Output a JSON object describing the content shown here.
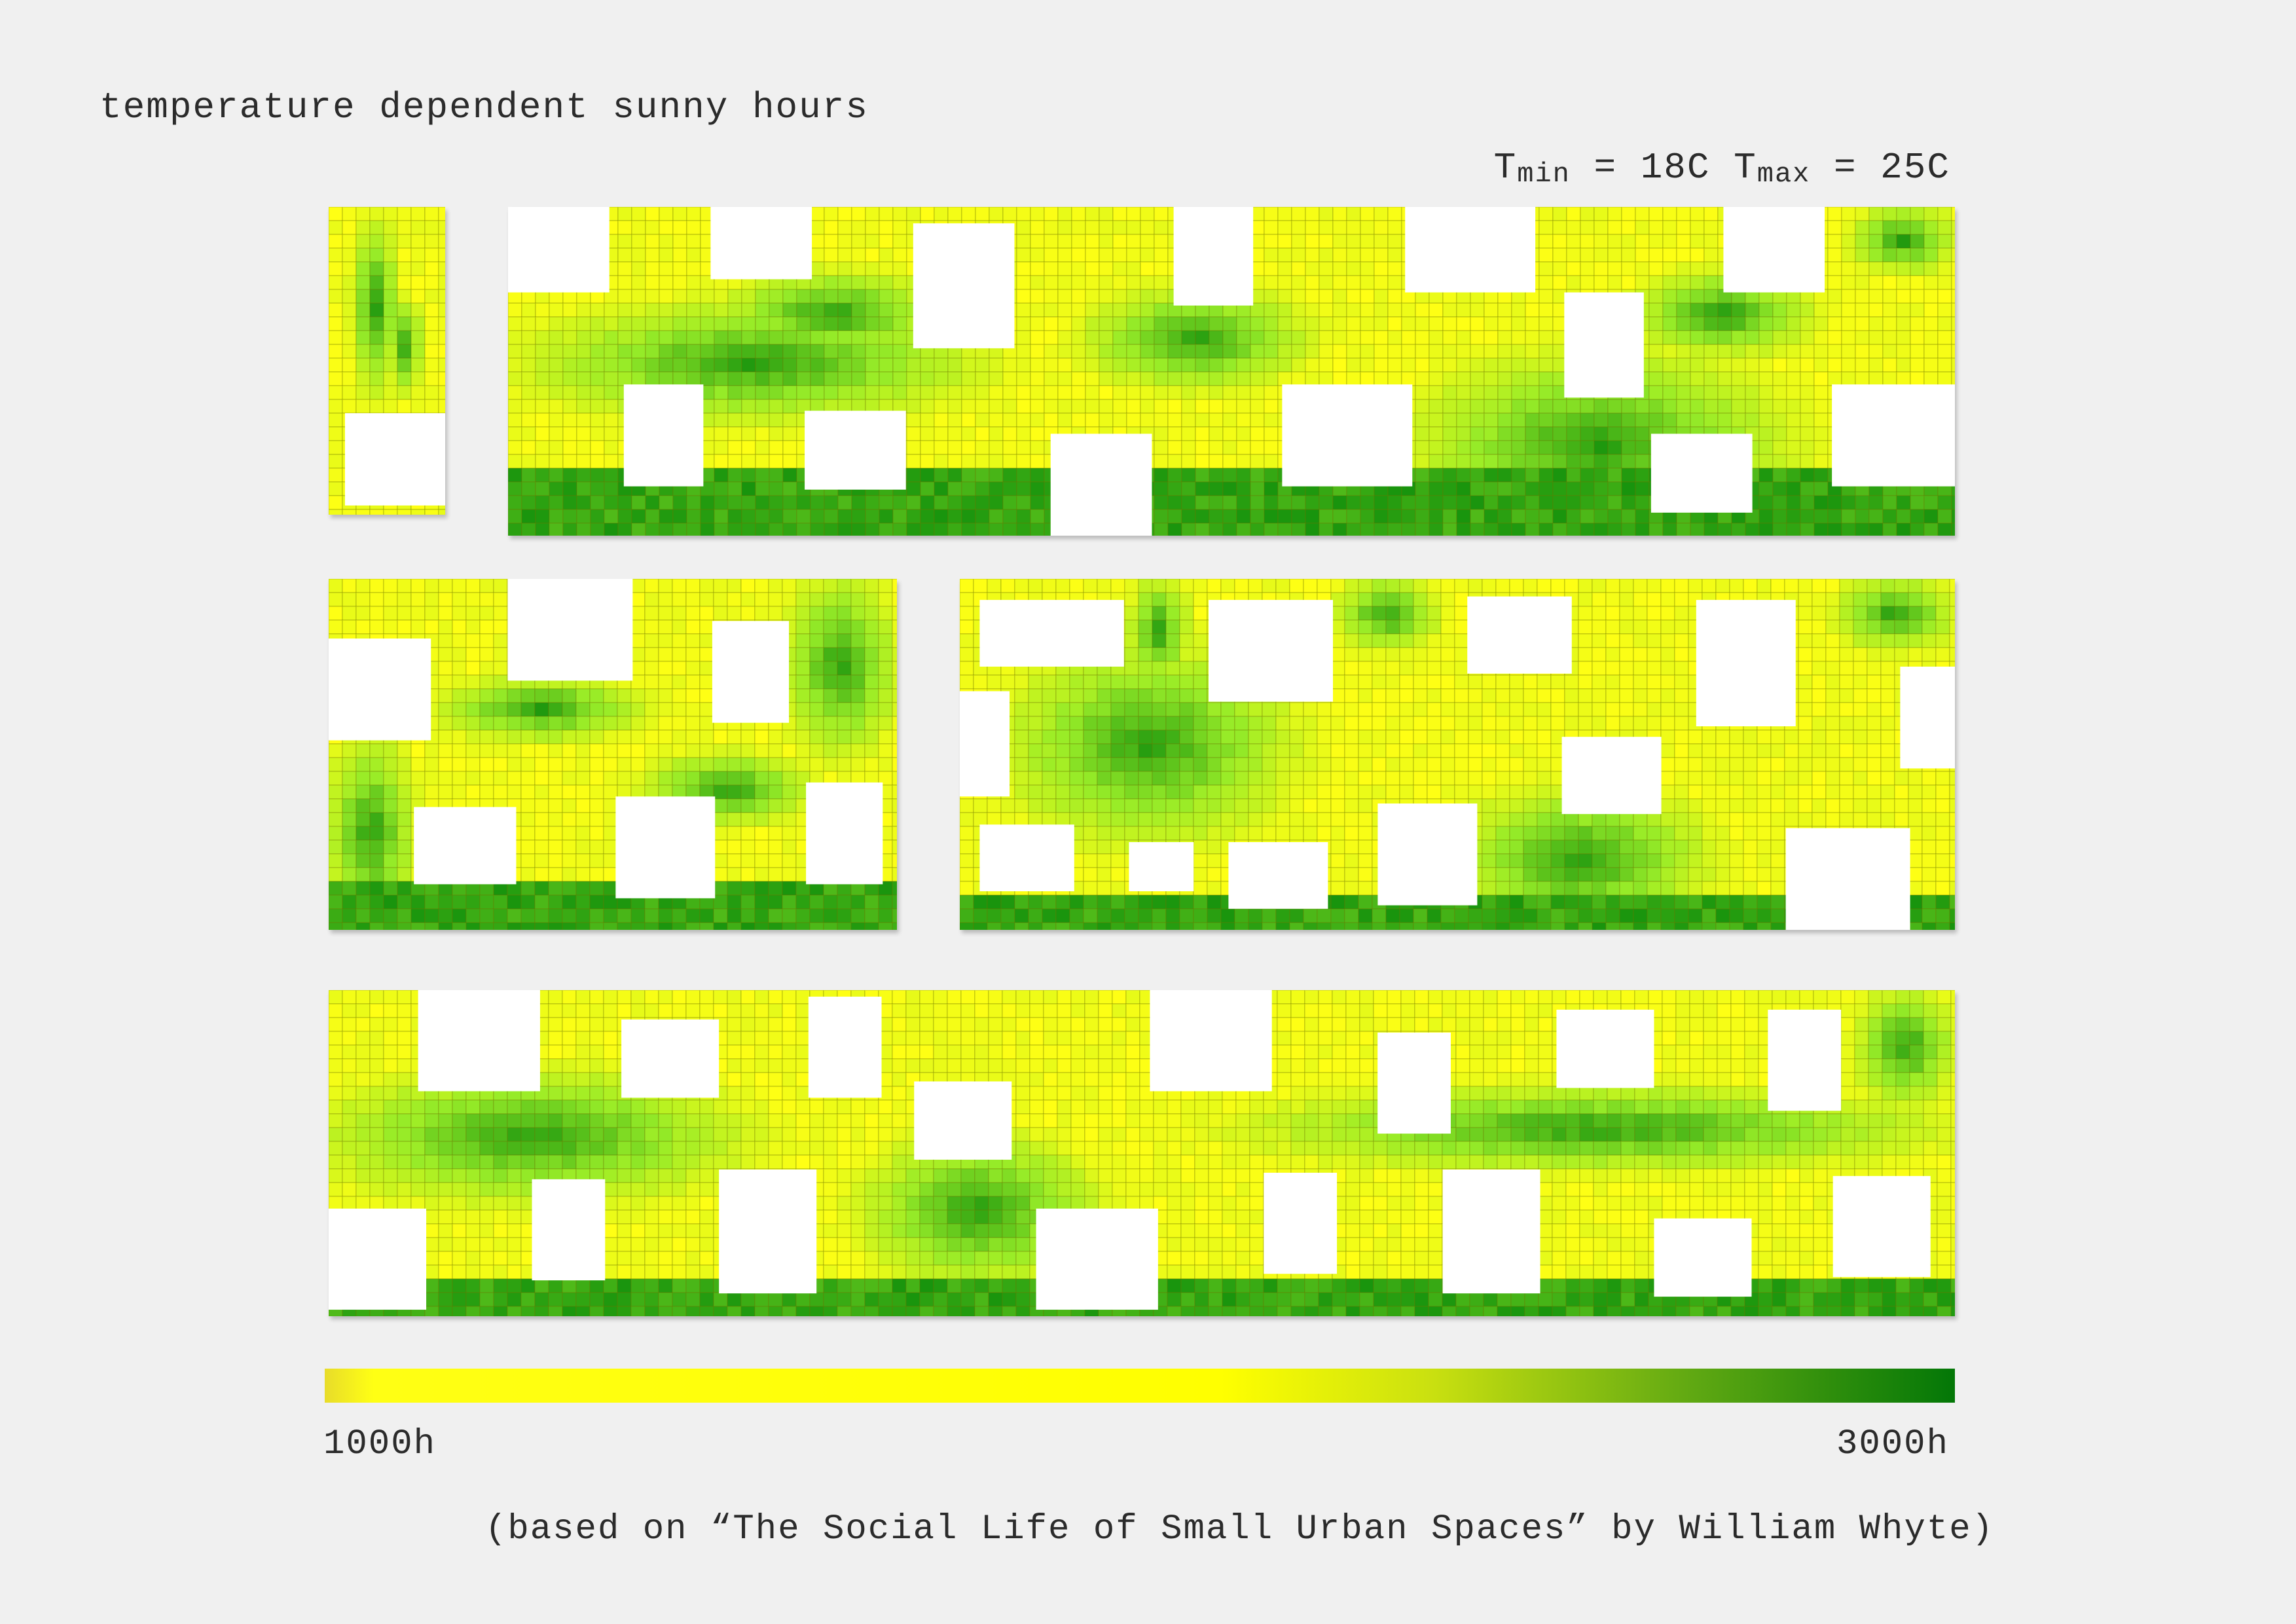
{
  "header": {
    "title": "temperature dependent sunny hours",
    "tmin_label": "T",
    "tmin_sub": "min",
    "tmin_value": " = 18C ",
    "tmax_label": "T",
    "tmax_sub": "max",
    "tmax_value": " = 25C"
  },
  "legend": {
    "min_label": "1000h",
    "max_label": "3000h",
    "color_low": "#ffff00",
    "color_high": "#037707"
  },
  "source": "(based on “The Social Life of Small Urban Spaces” by William Whyte)",
  "colors": {
    "low": "#ffff14",
    "high": "#0a8a0a",
    "grid_line": "#8a8a00",
    "building": "#ffffff"
  },
  "panels": [
    {
      "name": "panel-top-small",
      "buildings": [
        [
          0.14,
          0.67,
          0.86,
          0.3
        ]
      ],
      "green": [
        [
          0.2,
          0.05,
          0.4,
          0.55
        ],
        [
          0.5,
          0.3,
          0.3,
          0.3
        ]
      ],
      "bottom_green": 0.0
    },
    {
      "name": "panel-top-wide",
      "buildings": [
        [
          0.0,
          0.0,
          0.07,
          0.26
        ],
        [
          0.14,
          0.0,
          0.07,
          0.22
        ],
        [
          0.28,
          0.05,
          0.07,
          0.38
        ],
        [
          0.46,
          0.0,
          0.055,
          0.3
        ],
        [
          0.62,
          0.0,
          0.09,
          0.26
        ],
        [
          0.84,
          0.0,
          0.07,
          0.26
        ],
        [
          0.73,
          0.26,
          0.055,
          0.32
        ],
        [
          0.08,
          0.54,
          0.055,
          0.31
        ],
        [
          0.205,
          0.62,
          0.07,
          0.24
        ],
        [
          0.375,
          0.69,
          0.07,
          0.31
        ],
        [
          0.535,
          0.54,
          0.09,
          0.31
        ],
        [
          0.79,
          0.69,
          0.07,
          0.24
        ],
        [
          0.915,
          0.54,
          0.085,
          0.31
        ]
      ],
      "green": [
        [
          0.02,
          0.3,
          0.3,
          0.35
        ],
        [
          0.15,
          0.2,
          0.15,
          0.25
        ],
        [
          0.63,
          0.45,
          0.25,
          0.55
        ],
        [
          0.78,
          0.2,
          0.12,
          0.25
        ],
        [
          0.4,
          0.25,
          0.15,
          0.3
        ],
        [
          0.93,
          0.0,
          0.07,
          0.2
        ]
      ],
      "bottom_green": 0.2
    },
    {
      "name": "panel-middle-left",
      "buildings": [
        [
          0.0,
          0.17,
          0.18,
          0.29
        ],
        [
          0.315,
          0.0,
          0.22,
          0.29
        ],
        [
          0.675,
          0.12,
          0.135,
          0.29
        ],
        [
          0.15,
          0.65,
          0.18,
          0.22
        ],
        [
          0.505,
          0.62,
          0.175,
          0.29
        ],
        [
          0.84,
          0.58,
          0.135,
          0.29
        ]
      ],
      "green": [
        [
          0.0,
          0.45,
          0.15,
          0.55
        ],
        [
          0.2,
          0.28,
          0.35,
          0.18
        ],
        [
          0.8,
          0.0,
          0.2,
          0.5
        ],
        [
          0.55,
          0.5,
          0.3,
          0.2
        ]
      ],
      "bottom_green": 0.12
    },
    {
      "name": "panel-middle-right",
      "buildings": [
        [
          0.02,
          0.06,
          0.145,
          0.19
        ],
        [
          0.25,
          0.06,
          0.125,
          0.29
        ],
        [
          0.51,
          0.05,
          0.105,
          0.22
        ],
        [
          0.74,
          0.06,
          0.1,
          0.36
        ],
        [
          0.945,
          0.25,
          0.055,
          0.29
        ],
        [
          0.0,
          0.32,
          0.05,
          0.3
        ],
        [
          0.605,
          0.45,
          0.1,
          0.22
        ],
        [
          0.02,
          0.7,
          0.095,
          0.19
        ],
        [
          0.17,
          0.75,
          0.065,
          0.14
        ],
        [
          0.27,
          0.75,
          0.1,
          0.19
        ],
        [
          0.42,
          0.64,
          0.1,
          0.29
        ],
        [
          0.83,
          0.71,
          0.125,
          0.29
        ]
      ],
      "green": [
        [
          0.05,
          0.2,
          0.28,
          0.55
        ],
        [
          0.17,
          0.0,
          0.06,
          0.3
        ],
        [
          0.5,
          0.6,
          0.25,
          0.4
        ],
        [
          0.38,
          0.0,
          0.1,
          0.2
        ],
        [
          0.88,
          0.0,
          0.12,
          0.2
        ]
      ],
      "bottom_green": 0.1
    },
    {
      "name": "panel-bottom-wide",
      "buildings": [
        [
          0.055,
          0.0,
          0.075,
          0.31
        ],
        [
          0.18,
          0.09,
          0.06,
          0.24
        ],
        [
          0.295,
          0.02,
          0.045,
          0.31
        ],
        [
          0.36,
          0.28,
          0.06,
          0.24
        ],
        [
          0.505,
          0.0,
          0.075,
          0.31
        ],
        [
          0.645,
          0.13,
          0.045,
          0.31
        ],
        [
          0.755,
          0.06,
          0.06,
          0.24
        ],
        [
          0.885,
          0.06,
          0.045,
          0.31
        ],
        [
          0.0,
          0.67,
          0.06,
          0.31
        ],
        [
          0.125,
          0.58,
          0.045,
          0.31
        ],
        [
          0.24,
          0.55,
          0.06,
          0.38
        ],
        [
          0.435,
          0.67,
          0.075,
          0.31
        ],
        [
          0.575,
          0.56,
          0.045,
          0.31
        ],
        [
          0.685,
          0.55,
          0.06,
          0.38
        ],
        [
          0.815,
          0.7,
          0.06,
          0.24
        ],
        [
          0.925,
          0.57,
          0.06,
          0.31
        ]
      ],
      "green": [
        [
          0.0,
          0.25,
          0.25,
          0.4
        ],
        [
          0.33,
          0.45,
          0.14,
          0.45
        ],
        [
          0.58,
          0.3,
          0.4,
          0.25
        ],
        [
          0.94,
          0.0,
          0.06,
          0.35
        ]
      ],
      "bottom_green": 0.12
    }
  ]
}
